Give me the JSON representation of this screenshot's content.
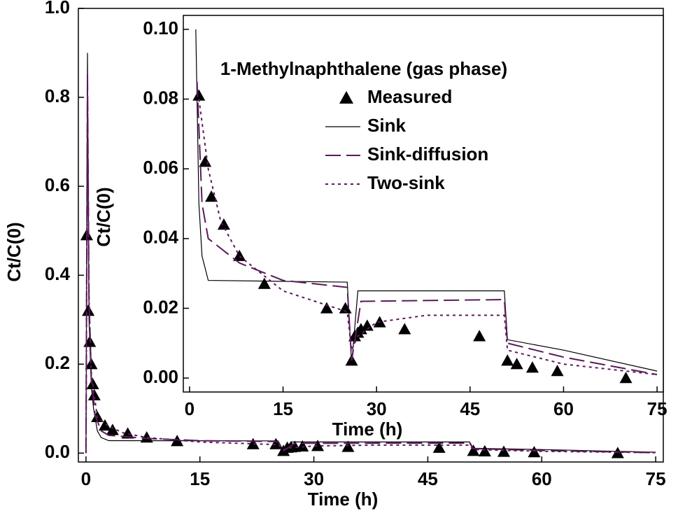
{
  "chart_data": [
    {
      "type": "line",
      "x_label": "Time (h)",
      "y_label": "Ct/C(0)",
      "xlim": [
        -1,
        76
      ],
      "ylim": [
        -0.02,
        1.0
      ],
      "xticks": [
        0,
        15,
        30,
        45,
        60,
        75
      ],
      "yticks": [
        {
          "value": 0,
          "label": "0.0"
        },
        0.2,
        0.4,
        0.6,
        0.8,
        {
          "value": 1,
          "label": "1.0"
        }
      ],
      "series": [
        {
          "style": "marker",
          "color": "#000000",
          "x": [
            0.1,
            0.3,
            0.5,
            0.7,
            0.9,
            1.1,
            1.5,
            2.5,
            3.5,
            5.5,
            8,
            12,
            22,
            25,
            26,
            26.5,
            27,
            27.5,
            28.5,
            30.5,
            34.5,
            46.5,
            51,
            52.5,
            55,
            59,
            70
          ],
          "values": [
            0.49,
            0.32,
            0.25,
            0.2,
            0.155,
            0.13,
            0.081,
            0.062,
            0.052,
            0.044,
            0.035,
            0.027,
            0.02,
            0.02,
            0.005,
            0.012,
            0.013,
            0.014,
            0.015,
            0.016,
            0.014,
            0.012,
            0.005,
            0.004,
            0.003,
            0.002,
            0
          ]
        },
        {
          "style": "solid",
          "color": "#000000",
          "x": [
            0,
            0.2,
            0.4,
            0.7,
            1,
            1.5,
            2,
            3,
            25.3,
            26,
            27,
            50.5,
            51,
            60,
            75
          ],
          "values": [
            0.0,
            0.9,
            0.3,
            0.15,
            0.1,
            0.05,
            0.035,
            0.028,
            0.0275,
            0.004,
            0.025,
            0.025,
            0.011,
            0.008,
            0.002
          ]
        },
        {
          "style": "dashed",
          "color": "#5a1a5a",
          "x": [
            0,
            0.2,
            0.4,
            0.7,
            1.2,
            2,
            3,
            8,
            15,
            25.3,
            26,
            27.5,
            50.5,
            51,
            60,
            75
          ],
          "values": [
            0.0,
            0.85,
            0.35,
            0.17,
            0.085,
            0.05,
            0.04,
            0.033,
            0.028,
            0.026,
            0.005,
            0.022,
            0.0225,
            0.01,
            0.006,
            0.001
          ]
        },
        {
          "style": "dotted",
          "color": "#5a1a5a",
          "x": [
            0,
            0.2,
            0.4,
            0.7,
            1.5,
            3,
            5,
            8,
            15,
            25.3,
            26,
            27,
            30,
            38,
            50.5,
            51,
            60,
            75
          ],
          "values": [
            0.0,
            0.8,
            0.35,
            0.18,
            0.08,
            0.06,
            0.045,
            0.035,
            0.025,
            0.019,
            0.008,
            0.012,
            0.016,
            0.018,
            0.018,
            0.008,
            0.004,
            0.001
          ]
        }
      ]
    },
    {
      "type": "line",
      "title": "1-Methylnaphthalene (gas phase)",
      "x_label": "Time (h)",
      "y_label": "Ct/C(0)",
      "xlim": [
        -1,
        76
      ],
      "ylim": [
        -0.004,
        0.104
      ],
      "xticks": [
        0,
        15,
        30,
        45,
        60,
        75
      ],
      "yticks": [
        {
          "value": 0,
          "label": "0.00"
        },
        0.02,
        0.04,
        0.06,
        0.08,
        {
          "value": 0.1,
          "label": "0.10"
        }
      ],
      "series": [
        {
          "name": "Measured",
          "style": "marker",
          "color": "#000000",
          "x": [
            1.5,
            2.5,
            3.5,
            5.5,
            8,
            12,
            22,
            25,
            26,
            26.5,
            27,
            27.5,
            28.5,
            30.5,
            34.5,
            46.5,
            51,
            52.5,
            55,
            59,
            70
          ],
          "values": [
            0.081,
            0.062,
            0.052,
            0.044,
            0.035,
            0.027,
            0.02,
            0.02,
            0.005,
            0.012,
            0.013,
            0.014,
            0.015,
            0.016,
            0.014,
            0.012,
            0.005,
            0.004,
            0.003,
            0.002,
            0
          ]
        },
        {
          "name": "Sink",
          "style": "solid",
          "color": "#000000",
          "x": [
            1,
            1.5,
            2,
            3,
            25.3,
            26,
            27,
            50.5,
            51,
            60,
            75
          ],
          "values": [
            0.1,
            0.05,
            0.035,
            0.028,
            0.0275,
            0.004,
            0.025,
            0.025,
            0.011,
            0.008,
            0.002
          ]
        },
        {
          "name": "Sink-diffusion",
          "style": "dashed",
          "color": "#5a1a5a",
          "x": [
            1.2,
            2,
            3,
            8,
            15,
            25.3,
            26,
            27.5,
            50.5,
            51,
            60,
            75
          ],
          "values": [
            0.085,
            0.05,
            0.04,
            0.033,
            0.028,
            0.026,
            0.005,
            0.022,
            0.0225,
            0.01,
            0.006,
            0.001
          ]
        },
        {
          "name": "Two-sink",
          "style": "dotted",
          "color": "#5a1a5a",
          "x": [
            1.5,
            3,
            5,
            8,
            15,
            25.3,
            26,
            27,
            30,
            38,
            50.5,
            51,
            60,
            75
          ],
          "values": [
            0.08,
            0.06,
            0.045,
            0.035,
            0.025,
            0.019,
            0.008,
            0.012,
            0.016,
            0.018,
            0.018,
            0.008,
            0.004,
            0.001
          ]
        }
      ]
    }
  ]
}
